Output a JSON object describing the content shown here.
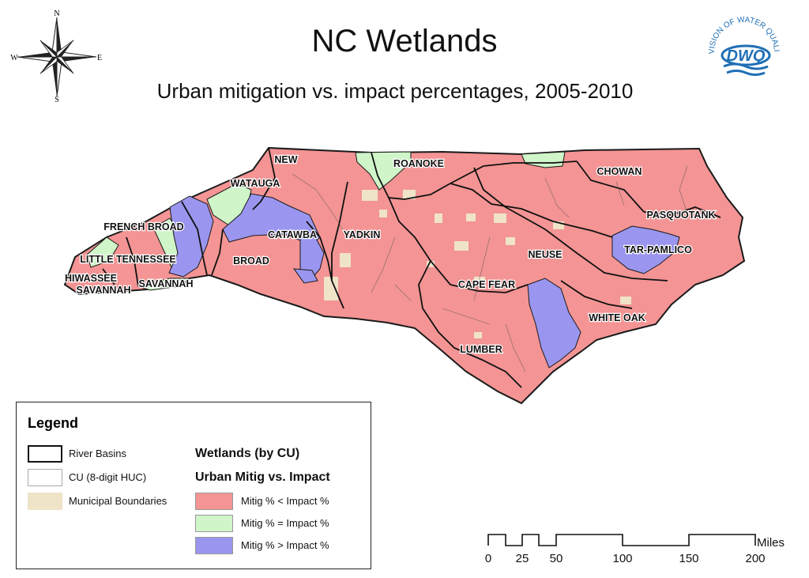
{
  "header": {
    "title": "NC Wetlands",
    "subtitle": "Urban mitigation vs. impact percentages, 2005-2010"
  },
  "compass": {
    "icon": "compass-rose-icon",
    "n": "N",
    "s": "S",
    "e": "E",
    "w": "W"
  },
  "logo": {
    "icon": "dwq-logo",
    "ring_text": "DIVISION OF WATER QUALITY",
    "abbr": "DWQ"
  },
  "map": {
    "colors": {
      "less": "#f49494",
      "equal": "#cff5c9",
      "greater": "#9a96ef",
      "municipal": "#efe3c8",
      "outline": "#1a1a1a"
    },
    "basin_labels": {
      "new": "NEW",
      "roanoke": "ROANOKE",
      "chowan": "CHOWAN",
      "watauga": "WATAUGA",
      "pasquotank": "PASQUOTANK",
      "french_broad": "FRENCH BROAD",
      "catawba": "CATAWBA",
      "yadkin": "YADKIN",
      "tar_pamlico": "TAR-PAMLICO",
      "neuse": "NEUSE",
      "little_tennessee": "LITTLE TENNESSEE",
      "broad": "BROAD",
      "hiwassee": "HIWASSEE",
      "savannah_a": "SAVANNAH",
      "savannah_b": "SAVANNAH",
      "cape_fear": "CAPE FEAR",
      "white_oak": "WHITE OAK",
      "lumber": "LUMBER"
    }
  },
  "legend": {
    "title": "Legend",
    "river_basins": "River Basins",
    "cu": "CU (8-digit HUC)",
    "municipal": "Municipal Boundaries",
    "wetlands_heading": "Wetlands (by CU)",
    "urban_heading": "Urban Mitig vs. Impact",
    "less": "Mitig % < Impact %",
    "equal": "Mitig % = Impact %",
    "greater": "Mitig % > Impact %"
  },
  "scale": {
    "unit": "Miles",
    "ticks": [
      "0",
      "25",
      "50",
      "100",
      "150",
      "200"
    ]
  }
}
